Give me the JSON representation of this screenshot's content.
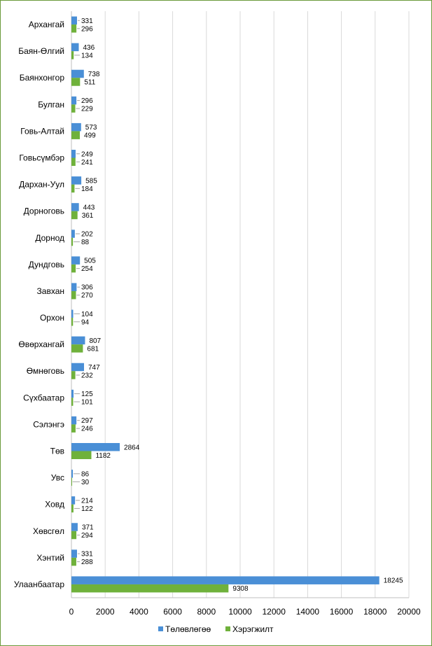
{
  "chart_data": {
    "type": "bar",
    "orientation": "horizontal",
    "categories": [
      "Архангай",
      "Баян-Өлгий",
      "Баянхонгор",
      "Булган",
      "Говь-Алтай",
      "Говьсүмбэр",
      "Дархан-Уул",
      "Дорноговь",
      "Дорнод",
      "Дундговь",
      "Завхан",
      "Орхон",
      "Өвөрхангай",
      "Өмнөговь",
      "Сүхбаатар",
      "Сэлэнгэ",
      "Төв",
      "Увс",
      "Ховд",
      "Хөвсгөл",
      "Хэнтий",
      "Улаанбаатар"
    ],
    "series": [
      {
        "name": "Төлөвлөгөө",
        "color": "#4a8fd6",
        "values": [
          331,
          436,
          738,
          296,
          573,
          249,
          585,
          443,
          202,
          505,
          306,
          104,
          807,
          747,
          125,
          297,
          2864,
          86,
          214,
          371,
          331,
          18245
        ]
      },
      {
        "name": "Хэрэгжилт",
        "color": "#6fb13b",
        "values": [
          296,
          134,
          511,
          229,
          499,
          241,
          184,
          361,
          88,
          254,
          270,
          94,
          681,
          232,
          101,
          246,
          1182,
          30,
          122,
          294,
          288,
          9308
        ]
      }
    ],
    "xlim": [
      0,
      20000
    ],
    "xticks": [
      "0",
      "2000",
      "4000",
      "6000",
      "8000",
      "10000",
      "12000",
      "14000",
      "16000",
      "18000",
      "20000"
    ],
    "grid": true,
    "legend": "bottom",
    "data_labels": true
  }
}
